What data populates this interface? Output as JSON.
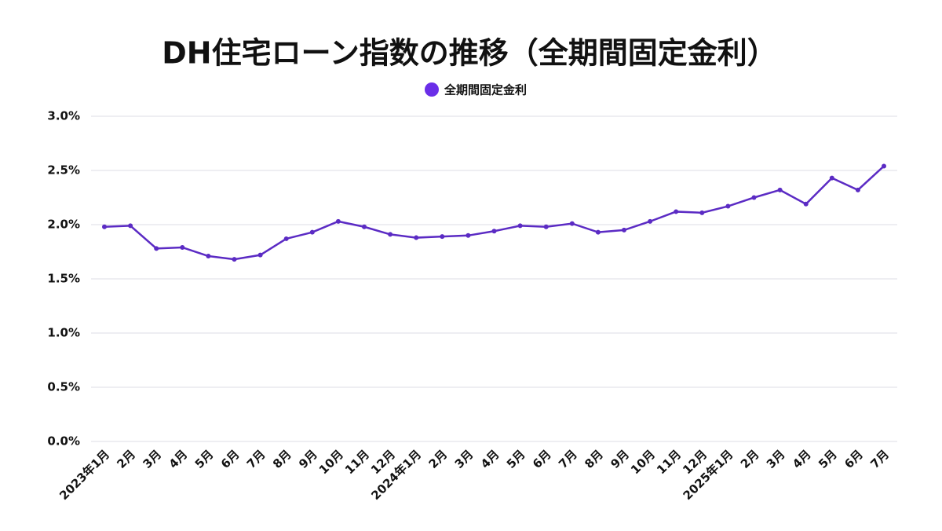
{
  "chart_data": {
    "type": "line",
    "title": "DH住宅ローン指数の推移（全期間固定金利）",
    "categories": [
      "2023年1月",
      "2月",
      "3月",
      "4月",
      "5月",
      "6月",
      "7月",
      "8月",
      "9月",
      "10月",
      "11月",
      "12月",
      "2024年1月",
      "2月",
      "3月",
      "4月",
      "5月",
      "6月",
      "7月",
      "8月",
      "9月",
      "10月",
      "11月",
      "12月",
      "2025年1月",
      "2月",
      "3月",
      "4月",
      "5月",
      "6月",
      "7月"
    ],
    "series": [
      {
        "name": "全期間固定金利",
        "color": "#5b2bc4",
        "marker_color": "#6a2ee8",
        "values": [
          1.98,
          1.99,
          1.78,
          1.79,
          1.71,
          1.68,
          1.72,
          1.87,
          1.93,
          2.03,
          1.98,
          1.91,
          1.88,
          1.89,
          1.9,
          1.94,
          1.99,
          1.98,
          2.01,
          1.93,
          1.95,
          2.03,
          2.12,
          2.11,
          2.17,
          2.25,
          2.32,
          2.19,
          2.43,
          2.32,
          2.54
        ]
      }
    ],
    "ylim": [
      0,
      3
    ],
    "yticks": [
      {
        "value": 0,
        "label": "0.0%"
      },
      {
        "value": 0.5,
        "label": "0.5%"
      },
      {
        "value": 1,
        "label": "1.0%"
      },
      {
        "value": 1.5,
        "label": "1.5%"
      },
      {
        "value": 2,
        "label": "2.0%"
      },
      {
        "value": 2.5,
        "label": "2.5%"
      },
      {
        "value": 3,
        "label": "3.0%"
      }
    ],
    "grid": true,
    "legend": "top"
  }
}
